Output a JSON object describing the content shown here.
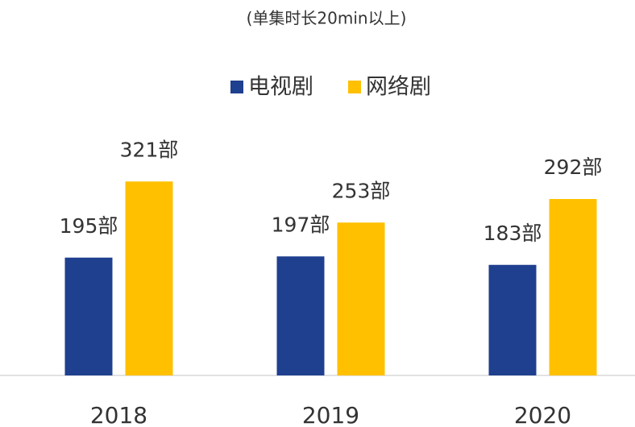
{
  "chart_data": {
    "type": "bar",
    "subtitle": "(单集时长20min以上)",
    "categories": [
      "2018",
      "2019",
      "2020"
    ],
    "series": [
      {
        "name": "电视剧",
        "color": "#1f3f8f",
        "values": [
          195,
          197,
          183
        ],
        "value_labels": [
          "195部",
          "197部",
          "183部"
        ]
      },
      {
        "name": "网络剧",
        "color": "#ffc000",
        "values": [
          321,
          253,
          292
        ],
        "value_labels": [
          "321部",
          "253部",
          "292部"
        ]
      }
    ]
  }
}
